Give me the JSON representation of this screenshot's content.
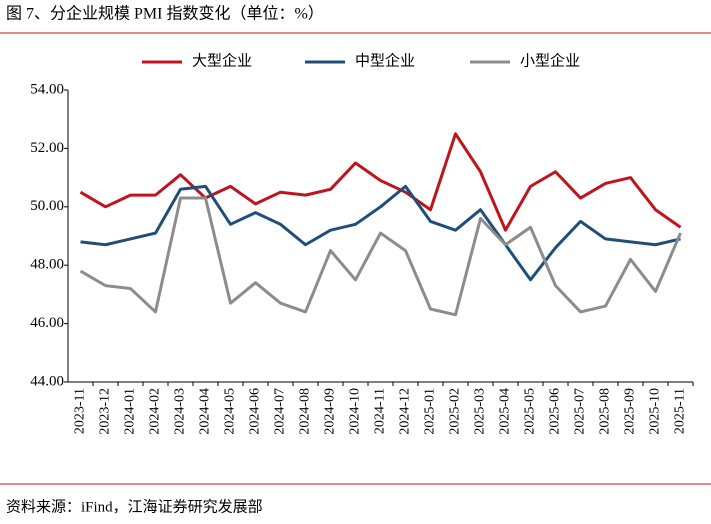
{
  "chart_data": {
    "type": "line",
    "title": "图 7、分企业规模 PMI 指数变化（单位：%）",
    "source": "资料来源：iFind，江海证券研究发展部",
    "categories": [
      "2023-11",
      "2023-12",
      "2024-01",
      "2024-02",
      "2024-03",
      "2024-04",
      "2024-05",
      "2024-06",
      "2024-07",
      "2024-08",
      "2024-09",
      "2024-10",
      "2024-11",
      "2024-12",
      "2025-01",
      "2025-02",
      "2025-03",
      "2025-04",
      "2025-05",
      "2025-06",
      "2025-07",
      "2025-08",
      "2025-09",
      "2025-10",
      "2025-11"
    ],
    "series": [
      {
        "name": "大型企业",
        "color": "#c0141c",
        "values": [
          50.5,
          50.0,
          50.4,
          50.4,
          51.1,
          50.3,
          50.7,
          50.1,
          50.5,
          50.4,
          50.6,
          51.5,
          50.9,
          50.5,
          49.9,
          52.5,
          51.2,
          49.2,
          50.7,
          51.2,
          50.3,
          50.8,
          51.0,
          49.9,
          49.3
        ]
      },
      {
        "name": "中型企业",
        "color": "#1f4e79",
        "values": [
          48.8,
          48.7,
          48.9,
          49.1,
          50.6,
          50.7,
          49.4,
          49.8,
          49.4,
          48.7,
          49.2,
          49.4,
          50.0,
          50.7,
          49.5,
          49.2,
          49.9,
          48.7,
          47.5,
          48.6,
          49.5,
          48.9,
          48.8,
          48.7,
          48.9
        ]
      },
      {
        "name": "小型企业",
        "color": "#8c8c8c",
        "values": [
          47.8,
          47.3,
          47.2,
          46.4,
          50.3,
          50.3,
          46.7,
          47.4,
          46.7,
          46.4,
          48.5,
          47.5,
          49.1,
          48.5,
          46.5,
          46.3,
          49.6,
          48.7,
          49.3,
          47.3,
          46.4,
          46.6,
          48.2,
          47.1,
          49.1
        ]
      }
    ],
    "ylim": [
      44,
      54
    ],
    "yticks": [
      {
        "value": 44,
        "label": "44.00"
      },
      {
        "value": 46,
        "label": "46.00"
      },
      {
        "value": 48,
        "label": "48.00"
      },
      {
        "value": 50,
        "label": "50.00"
      },
      {
        "value": 52,
        "label": "52.00"
      },
      {
        "value": 54,
        "label": "54.00"
      }
    ],
    "legend": "top"
  }
}
